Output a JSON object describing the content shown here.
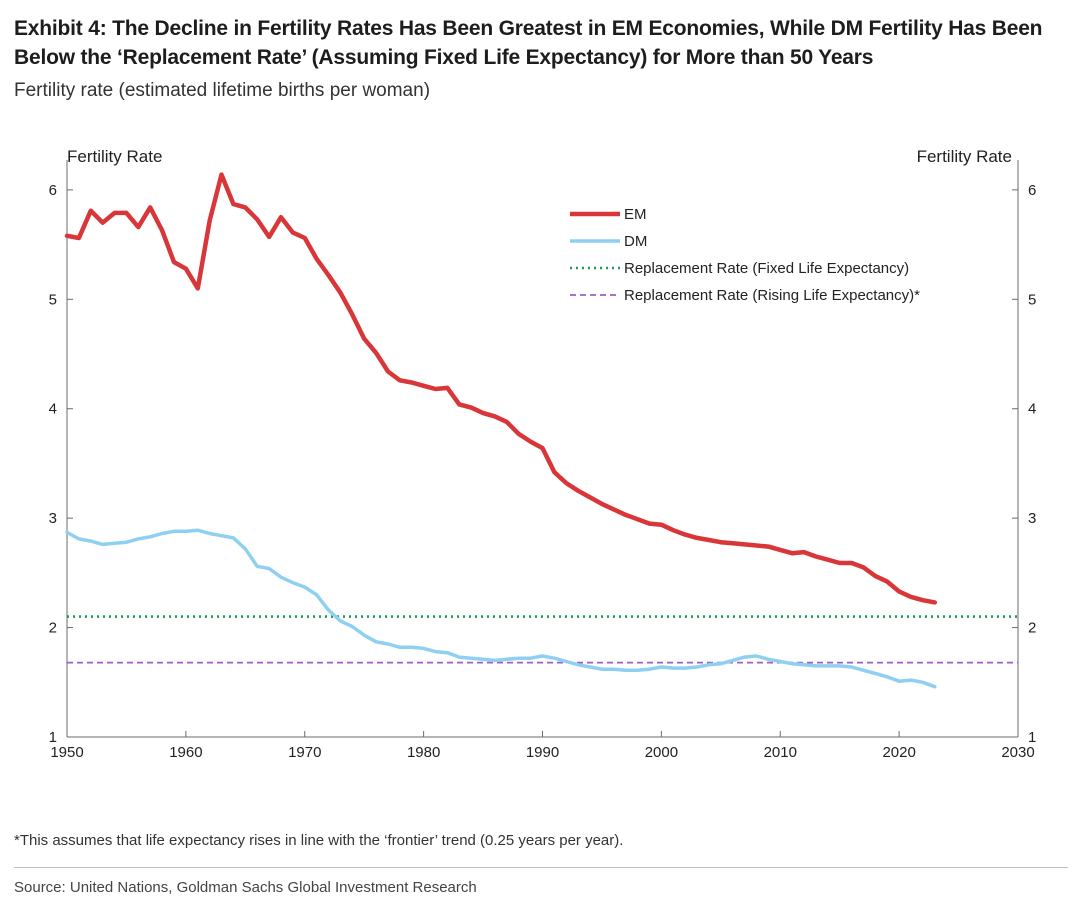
{
  "header": {
    "title": "Exhibit 4: The Decline in Fertility Rates Has Been Greatest in EM Economies, While DM Fertility Has Been Below the ‘Replacement Rate’ (Assuming Fixed Life Expectancy) for More than 50 Years",
    "subtitle": "Fertility rate (estimated lifetime births per woman)"
  },
  "footer": {
    "note": "*This assumes that life expectancy rises in line with the ‘frontier’ trend (0.25 years per year).",
    "source": "Source: United Nations, Goldman Sachs Global Investment Research"
  },
  "colors": {
    "em": "#d9363a",
    "dm": "#8fd0f2",
    "fixed": "#1a9a5a",
    "rising": "#a05cc8"
  },
  "chart_data": {
    "type": "line",
    "y_left_label": "Fertility Rate",
    "y_right_label": "Fertility Rate",
    "xlim": [
      1950,
      2030
    ],
    "ylim": [
      1,
      6.2
    ],
    "x_ticks": [
      1950,
      1960,
      1970,
      1980,
      1990,
      2000,
      2010,
      2020,
      2030
    ],
    "y_ticks": [
      1,
      2,
      3,
      4,
      5,
      6
    ],
    "legend_position": "top-right",
    "grid": false,
    "series": [
      {
        "name": "EM",
        "style": "solid",
        "x": [
          1950,
          1951,
          1952,
          1953,
          1954,
          1955,
          1956,
          1957,
          1958,
          1959,
          1960,
          1961,
          1962,
          1963,
          1964,
          1965,
          1966,
          1967,
          1968,
          1969,
          1970,
          1971,
          1972,
          1973,
          1974,
          1975,
          1976,
          1977,
          1978,
          1979,
          1980,
          1981,
          1982,
          1983,
          1984,
          1985,
          1986,
          1987,
          1988,
          1989,
          1990,
          1991,
          1992,
          1993,
          1994,
          1995,
          1996,
          1997,
          1998,
          1999,
          2000,
          2001,
          2002,
          2003,
          2004,
          2005,
          2006,
          2007,
          2008,
          2009,
          2010,
          2011,
          2012,
          2013,
          2014,
          2015,
          2016,
          2017,
          2018,
          2019,
          2020,
          2021,
          2022,
          2023
        ],
        "values": [
          5.58,
          5.56,
          5.81,
          5.7,
          5.79,
          5.79,
          5.66,
          5.84,
          5.63,
          5.34,
          5.28,
          5.1,
          5.72,
          6.14,
          5.87,
          5.84,
          5.73,
          5.57,
          5.75,
          5.61,
          5.56,
          5.37,
          5.22,
          5.06,
          4.86,
          4.64,
          4.51,
          4.34,
          4.26,
          4.24,
          4.21,
          4.18,
          4.19,
          4.04,
          4.01,
          3.96,
          3.93,
          3.88,
          3.77,
          3.7,
          3.64,
          3.42,
          3.32,
          3.25,
          3.19,
          3.13,
          3.08,
          3.03,
          2.99,
          2.95,
          2.94,
          2.89,
          2.85,
          2.82,
          2.8,
          2.78,
          2.77,
          2.76,
          2.75,
          2.74,
          2.71,
          2.68,
          2.69,
          2.65,
          2.62,
          2.59,
          2.59,
          2.55,
          2.47,
          2.42,
          2.33,
          2.28,
          2.25,
          2.23
        ]
      },
      {
        "name": "DM",
        "style": "solid",
        "x": [
          1950,
          1951,
          1952,
          1953,
          1954,
          1955,
          1956,
          1957,
          1958,
          1959,
          1960,
          1961,
          1962,
          1963,
          1964,
          1965,
          1966,
          1967,
          1968,
          1969,
          1970,
          1971,
          1972,
          1973,
          1974,
          1975,
          1976,
          1977,
          1978,
          1979,
          1980,
          1981,
          1982,
          1983,
          1984,
          1985,
          1986,
          1987,
          1988,
          1989,
          1990,
          1991,
          1992,
          1993,
          1994,
          1995,
          1996,
          1997,
          1998,
          1999,
          2000,
          2001,
          2002,
          2003,
          2004,
          2005,
          2006,
          2007,
          2008,
          2009,
          2010,
          2011,
          2012,
          2013,
          2014,
          2015,
          2016,
          2017,
          2018,
          2019,
          2020,
          2021,
          2022,
          2023
        ],
        "values": [
          2.87,
          2.81,
          2.79,
          2.76,
          2.77,
          2.78,
          2.81,
          2.83,
          2.86,
          2.88,
          2.88,
          2.89,
          2.86,
          2.84,
          2.82,
          2.72,
          2.56,
          2.54,
          2.46,
          2.41,
          2.37,
          2.3,
          2.16,
          2.06,
          2.01,
          1.93,
          1.87,
          1.85,
          1.82,
          1.82,
          1.81,
          1.78,
          1.77,
          1.73,
          1.72,
          1.71,
          1.7,
          1.71,
          1.72,
          1.72,
          1.74,
          1.72,
          1.69,
          1.66,
          1.64,
          1.62,
          1.62,
          1.61,
          1.61,
          1.62,
          1.64,
          1.63,
          1.63,
          1.64,
          1.66,
          1.67,
          1.7,
          1.73,
          1.74,
          1.71,
          1.69,
          1.67,
          1.66,
          1.65,
          1.65,
          1.65,
          1.64,
          1.61,
          1.58,
          1.55,
          1.51,
          1.52,
          1.5,
          1.46
        ]
      },
      {
        "name": "Replacement Rate (Fixed Life Expectancy)",
        "style": "dotted",
        "x": [
          1950,
          2030
        ],
        "values": [
          2.1,
          2.1
        ]
      },
      {
        "name": "Replacement Rate (Rising Life Expectancy)*",
        "style": "dashed",
        "x": [
          1950,
          2030
        ],
        "values": [
          1.68,
          1.68
        ]
      }
    ]
  }
}
